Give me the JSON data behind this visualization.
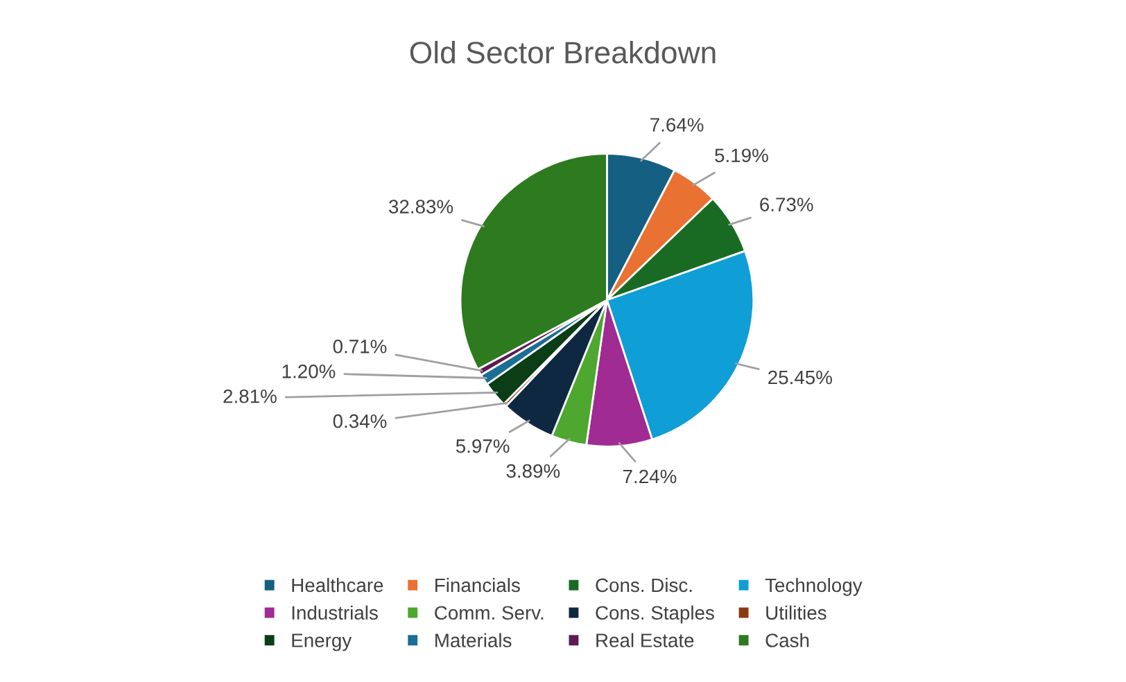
{
  "chart_data": {
    "type": "pie",
    "title": "Old Sector Breakdown",
    "categories": [
      "Healthcare",
      "Financials",
      "Cons. Disc.",
      "Technology",
      "Industrials",
      "Comm. Serv.",
      "Cons. Staples",
      "Utilities",
      "Energy",
      "Materials",
      "Real Estate",
      "Cash"
    ],
    "values": [
      7.64,
      5.19,
      6.73,
      25.45,
      7.24,
      3.89,
      5.97,
      0.34,
      2.81,
      1.2,
      0.71,
      32.83
    ],
    "colors": [
      "#156082",
      "#e97132",
      "#196b24",
      "#0f9ed5",
      "#a02b93",
      "#4ea72e",
      "#0e2841",
      "#8a3a12",
      "#0b3d17",
      "#1b6e94",
      "#5e1b55",
      "#2d7a1f"
    ],
    "value_labels": [
      "7.64%",
      "5.19%",
      "6.73%",
      "25.45%",
      "7.24%",
      "3.89%",
      "5.97%",
      "0.34%",
      "2.81%",
      "1.20%",
      "0.71%",
      "32.83%"
    ],
    "legend": "bottom"
  }
}
